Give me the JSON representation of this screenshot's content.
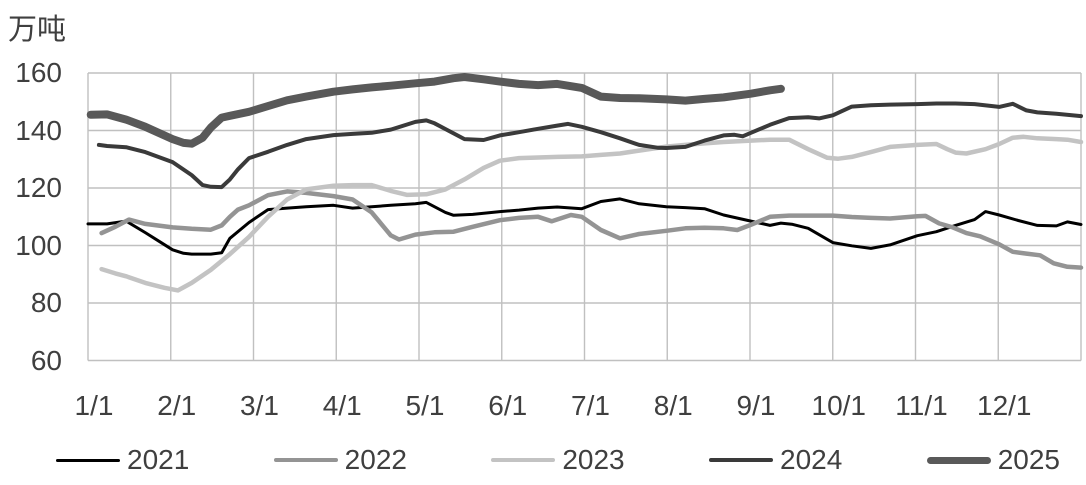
{
  "chart_data": {
    "type": "line",
    "unit_label": "万吨",
    "ylabel": "万吨",
    "ylim": [
      60,
      160
    ],
    "yticks": [
      160,
      140,
      120,
      100,
      80,
      60
    ],
    "xticks": [
      "1/1",
      "2/1",
      "3/1",
      "4/1",
      "5/1",
      "6/1",
      "7/1",
      "8/1",
      "9/1",
      "10/1",
      "11/1",
      "12/1"
    ],
    "grid": true,
    "grid_color": "#c0c0c0",
    "text_color": "#3f3f3f",
    "legend_position": "bottom",
    "x_unit": "day_of_year",
    "series": [
      {
        "name": "2021",
        "color": "#000000",
        "stroke_width": 3,
        "points": [
          [
            1,
            107.5
          ],
          [
            8,
            107.5
          ],
          [
            15,
            108.5
          ],
          [
            22,
            104.5
          ],
          [
            27,
            101.5
          ],
          [
            32,
            98.5
          ],
          [
            36,
            97.3
          ],
          [
            39,
            97
          ],
          [
            46,
            97
          ],
          [
            50,
            97.5
          ],
          [
            53,
            102.5
          ],
          [
            60,
            108
          ],
          [
            67,
            112.5
          ],
          [
            74,
            113
          ],
          [
            81,
            113.5
          ],
          [
            91,
            114
          ],
          [
            98,
            113
          ],
          [
            105,
            113.5
          ],
          [
            112,
            114
          ],
          [
            121,
            114.5
          ],
          [
            125,
            115
          ],
          [
            132,
            111.5
          ],
          [
            135,
            110.5
          ],
          [
            142,
            110.8
          ],
          [
            152,
            111.8
          ],
          [
            159,
            112.3
          ],
          [
            166,
            113
          ],
          [
            173,
            113.4
          ],
          [
            182,
            112.8
          ],
          [
            189,
            115.3
          ],
          [
            196,
            116.2
          ],
          [
            203,
            114.5
          ],
          [
            213,
            113.5
          ],
          [
            220,
            113.2
          ],
          [
            227,
            112.8
          ],
          [
            234,
            110.6
          ],
          [
            244,
            108.5
          ],
          [
            251,
            107
          ],
          [
            255,
            107.8
          ],
          [
            259,
            107.4
          ],
          [
            265,
            106
          ],
          [
            274,
            101
          ],
          [
            281,
            99.9
          ],
          [
            288,
            99
          ],
          [
            295,
            100.2
          ],
          [
            305,
            103.4
          ],
          [
            312,
            104.8
          ],
          [
            319,
            107
          ],
          [
            326,
            109
          ],
          [
            330,
            111.8
          ],
          [
            335,
            110.6
          ],
          [
            342,
            108.7
          ],
          [
            349,
            107
          ],
          [
            356,
            106.8
          ],
          [
            360,
            108.2
          ],
          [
            365,
            107.3
          ]
        ]
      },
      {
        "name": "2022",
        "color": "#949494",
        "stroke_width": 4.5,
        "points": [
          [
            6,
            104.3
          ],
          [
            11,
            106.5
          ],
          [
            16,
            109
          ],
          [
            22,
            107.5
          ],
          [
            32,
            106.3
          ],
          [
            39,
            105.8
          ],
          [
            46,
            105.5
          ],
          [
            50,
            107
          ],
          [
            53,
            110
          ],
          [
            56,
            112.5
          ],
          [
            60,
            114
          ],
          [
            67,
            117.5
          ],
          [
            74,
            118.8
          ],
          [
            81,
            118.3
          ],
          [
            91,
            117.2
          ],
          [
            98,
            116
          ],
          [
            105,
            111.5
          ],
          [
            112,
            103.5
          ],
          [
            115,
            102.1
          ],
          [
            121,
            103.8
          ],
          [
            128,
            104.6
          ],
          [
            135,
            104.8
          ],
          [
            142,
            106.5
          ],
          [
            152,
            108.8
          ],
          [
            159,
            109.6
          ],
          [
            166,
            110
          ],
          [
            171,
            108.4
          ],
          [
            178,
            110.6
          ],
          [
            182,
            110
          ],
          [
            189,
            105.4
          ],
          [
            196,
            102.5
          ],
          [
            203,
            104
          ],
          [
            213,
            105.1
          ],
          [
            220,
            106
          ],
          [
            227,
            106.2
          ],
          [
            234,
            106
          ],
          [
            239,
            105.4
          ],
          [
            244,
            107.2
          ],
          [
            251,
            110
          ],
          [
            258,
            110.4
          ],
          [
            274,
            110.4
          ],
          [
            281,
            109.9
          ],
          [
            288,
            109.6
          ],
          [
            295,
            109.4
          ],
          [
            305,
            110.2
          ],
          [
            308,
            110.3
          ],
          [
            313,
            107.7
          ],
          [
            318,
            106.3
          ],
          [
            323,
            104.3
          ],
          [
            328,
            103.2
          ],
          [
            335,
            100.4
          ],
          [
            340,
            97.8
          ],
          [
            345,
            97.2
          ],
          [
            350,
            96.6
          ],
          [
            355,
            93.8
          ],
          [
            360,
            92.6
          ],
          [
            365,
            92.3
          ]
        ]
      },
      {
        "name": "2023",
        "color": "#c3c3c3",
        "stroke_width": 4.5,
        "points": [
          [
            6,
            91.8
          ],
          [
            11,
            90.3
          ],
          [
            15,
            89.3
          ],
          [
            22,
            87
          ],
          [
            29,
            85.3
          ],
          [
            34,
            84.4
          ],
          [
            39,
            87
          ],
          [
            46,
            91.5
          ],
          [
            53,
            97
          ],
          [
            60,
            103
          ],
          [
            67,
            110
          ],
          [
            74,
            116
          ],
          [
            81,
            119.5
          ],
          [
            91,
            120.8
          ],
          [
            98,
            121
          ],
          [
            105,
            121
          ],
          [
            112,
            119
          ],
          [
            118,
            117.6
          ],
          [
            125,
            117.8
          ],
          [
            132,
            119.5
          ],
          [
            139,
            123
          ],
          [
            146,
            127
          ],
          [
            152,
            129.5
          ],
          [
            159,
            130.4
          ],
          [
            166,
            130.6
          ],
          [
            173,
            130.8
          ],
          [
            182,
            131
          ],
          [
            189,
            131.5
          ],
          [
            196,
            132
          ],
          [
            203,
            133
          ],
          [
            213,
            134.4
          ],
          [
            220,
            135
          ],
          [
            227,
            135.5
          ],
          [
            234,
            136
          ],
          [
            244,
            136.5
          ],
          [
            251,
            136.8
          ],
          [
            258,
            136.8
          ],
          [
            265,
            133.5
          ],
          [
            272,
            130.5
          ],
          [
            276,
            130.2
          ],
          [
            281,
            130.8
          ],
          [
            288,
            132.5
          ],
          [
            295,
            134.3
          ],
          [
            305,
            135
          ],
          [
            312,
            135.3
          ],
          [
            316,
            133.5
          ],
          [
            319,
            132.3
          ],
          [
            323,
            132
          ],
          [
            330,
            133.5
          ],
          [
            335,
            135.3
          ],
          [
            340,
            137.5
          ],
          [
            344,
            137.8
          ],
          [
            349,
            137.3
          ],
          [
            356,
            137
          ],
          [
            360,
            136.8
          ],
          [
            365,
            136
          ]
        ]
      },
      {
        "name": "2024",
        "color": "#3a3a3a",
        "stroke_width": 4,
        "points": [
          [
            5,
            135
          ],
          [
            8,
            134.6
          ],
          [
            15,
            134.2
          ],
          [
            22,
            132.5
          ],
          [
            32,
            129
          ],
          [
            39,
            124.5
          ],
          [
            43,
            121
          ],
          [
            46,
            120.4
          ],
          [
            50,
            120.3
          ],
          [
            53,
            123
          ],
          [
            56,
            126.5
          ],
          [
            60,
            130.4
          ],
          [
            67,
            132.6
          ],
          [
            74,
            135
          ],
          [
            81,
            137
          ],
          [
            91,
            138.4
          ],
          [
            98,
            138.8
          ],
          [
            105,
            139.2
          ],
          [
            112,
            140.3
          ],
          [
            121,
            143
          ],
          [
            125,
            143.5
          ],
          [
            128,
            142.5
          ],
          [
            135,
            139
          ],
          [
            139,
            137
          ],
          [
            146,
            136.7
          ],
          [
            152,
            138.3
          ],
          [
            159,
            139.4
          ],
          [
            166,
            140.6
          ],
          [
            173,
            141.7
          ],
          [
            177,
            142.3
          ],
          [
            182,
            141.3
          ],
          [
            189,
            139.4
          ],
          [
            196,
            137.3
          ],
          [
            203,
            135
          ],
          [
            210,
            134
          ],
          [
            213,
            133.9
          ],
          [
            220,
            134.3
          ],
          [
            227,
            136.5
          ],
          [
            234,
            138.3
          ],
          [
            238,
            138.5
          ],
          [
            241,
            138
          ],
          [
            244,
            139.2
          ],
          [
            251,
            142
          ],
          [
            258,
            144.3
          ],
          [
            265,
            144.6
          ],
          [
            269,
            144.2
          ],
          [
            274,
            145.3
          ],
          [
            281,
            148.3
          ],
          [
            288,
            148.8
          ],
          [
            295,
            149
          ],
          [
            305,
            149.2
          ],
          [
            312,
            149.4
          ],
          [
            319,
            149.4
          ],
          [
            326,
            149.2
          ],
          [
            335,
            148.2
          ],
          [
            340,
            149.3
          ],
          [
            345,
            147
          ],
          [
            349,
            146.3
          ],
          [
            356,
            145.8
          ],
          [
            365,
            145
          ]
        ]
      },
      {
        "name": "2025",
        "color": "#595959",
        "stroke_width": 8,
        "points": [
          [
            2,
            145.5
          ],
          [
            8,
            145.6
          ],
          [
            15,
            143.8
          ],
          [
            22,
            141.3
          ],
          [
            32,
            137
          ],
          [
            36,
            135.7
          ],
          [
            39,
            135.4
          ],
          [
            43,
            137.5
          ],
          [
            46,
            141
          ],
          [
            50,
            144.5
          ],
          [
            53,
            145.1
          ],
          [
            60,
            146.5
          ],
          [
            67,
            148.5
          ],
          [
            74,
            150.5
          ],
          [
            81,
            151.8
          ],
          [
            91,
            153.5
          ],
          [
            98,
            154.3
          ],
          [
            105,
            155
          ],
          [
            112,
            155.6
          ],
          [
            121,
            156.4
          ],
          [
            128,
            157
          ],
          [
            135,
            158.2
          ],
          [
            139,
            158.6
          ],
          [
            146,
            157.8
          ],
          [
            152,
            157
          ],
          [
            159,
            156.2
          ],
          [
            166,
            155.8
          ],
          [
            173,
            156.2
          ],
          [
            182,
            154.8
          ],
          [
            189,
            151.8
          ],
          [
            196,
            151.3
          ],
          [
            203,
            151.2
          ],
          [
            213,
            150.8
          ],
          [
            220,
            150.4
          ],
          [
            227,
            151
          ],
          [
            234,
            151.5
          ],
          [
            244,
            152.8
          ],
          [
            251,
            154
          ],
          [
            255,
            154.5
          ]
        ]
      }
    ]
  }
}
